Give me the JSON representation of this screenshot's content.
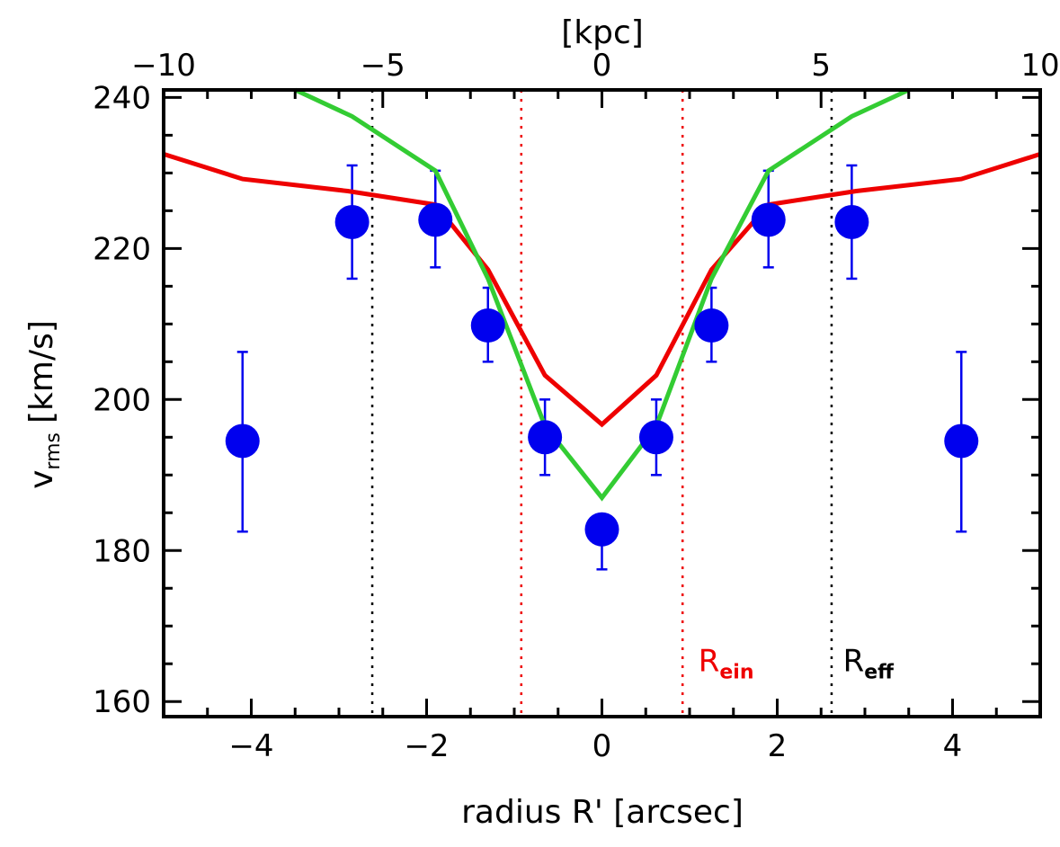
{
  "chart_data": {
    "type": "scatter",
    "xlabel": "radius R' [arcsec]",
    "xlabel_top": "[kpc]",
    "ylabel": "v",
    "ylabel_sub": "rms",
    "ylabel_unit": "[km/s]",
    "xlim": [
      -5,
      5
    ],
    "xlim_top": [
      -10,
      10
    ],
    "ylim": [
      158,
      241
    ],
    "xticks": [
      -4,
      -2,
      0,
      2,
      4
    ],
    "xtick_labels": [
      "−4",
      "−2",
      "0",
      "2",
      "4"
    ],
    "xticks_top": [
      -10,
      -5,
      0,
      5,
      10
    ],
    "xtick_labels_top": [
      "−10",
      "−5",
      "0",
      "5",
      "10"
    ],
    "yticks": [
      160,
      180,
      200,
      220,
      240
    ],
    "ytick_labels": [
      "160",
      "180",
      "200",
      "220",
      "240"
    ],
    "grid": false,
    "series": [
      {
        "kind": "points",
        "color": "#0000ee",
        "x": [
          -4.1,
          -2.85,
          -1.9,
          -1.3,
          -0.65,
          0,
          0.62,
          1.25,
          1.9,
          2.85,
          4.1
        ],
        "y": [
          194.5,
          223.5,
          223.8,
          209.8,
          195.0,
          182.8,
          195.0,
          209.8,
          223.8,
          223.5,
          194.5
        ],
        "yerr_low": [
          182.5,
          216.0,
          217.5,
          205.0,
          190.0,
          177.5,
          190.0,
          205.0,
          217.5,
          216.0,
          182.5
        ],
        "yerr_high": [
          206.3,
          231.0,
          230.3,
          214.8,
          200.0,
          183.0,
          200.0,
          214.8,
          230.3,
          231.0,
          206.3
        ]
      },
      {
        "kind": "line",
        "color": "#ee0000",
        "x": [
          -5,
          -4.1,
          -2.9,
          -1.9,
          -1.3,
          -0.65,
          0,
          0.62,
          1.25,
          1.9,
          2.9,
          4.1,
          5
        ],
        "y": [
          232.5,
          229.2,
          227.6,
          225.8,
          217.2,
          203.2,
          196.7,
          203.2,
          217.2,
          225.8,
          227.6,
          229.2,
          232.5
        ]
      },
      {
        "kind": "line",
        "color": "#33cc33",
        "x": [
          -3.5,
          -2.85,
          -1.9,
          -1.3,
          -0.65,
          0,
          0.62,
          1.25,
          1.9,
          2.85,
          3.5
        ],
        "y": [
          241,
          237.5,
          230.3,
          216.0,
          196.5,
          187.0,
          196.5,
          216.0,
          230.3,
          237.5,
          241
        ]
      }
    ],
    "vlines": [
      {
        "x": -2.62,
        "color": "#000000"
      },
      {
        "x": -0.92,
        "color": "#ee0000"
      },
      {
        "x": 0.92,
        "color": "#ee0000"
      },
      {
        "x": 2.62,
        "color": "#000000"
      }
    ],
    "annotations": [
      {
        "main": "R",
        "sub": "ein",
        "color": "#ee0000",
        "x": 1.1,
        "y": 164
      },
      {
        "main": "R",
        "sub": "eff",
        "color": "#000000",
        "x": 2.75,
        "y": 164
      }
    ]
  }
}
